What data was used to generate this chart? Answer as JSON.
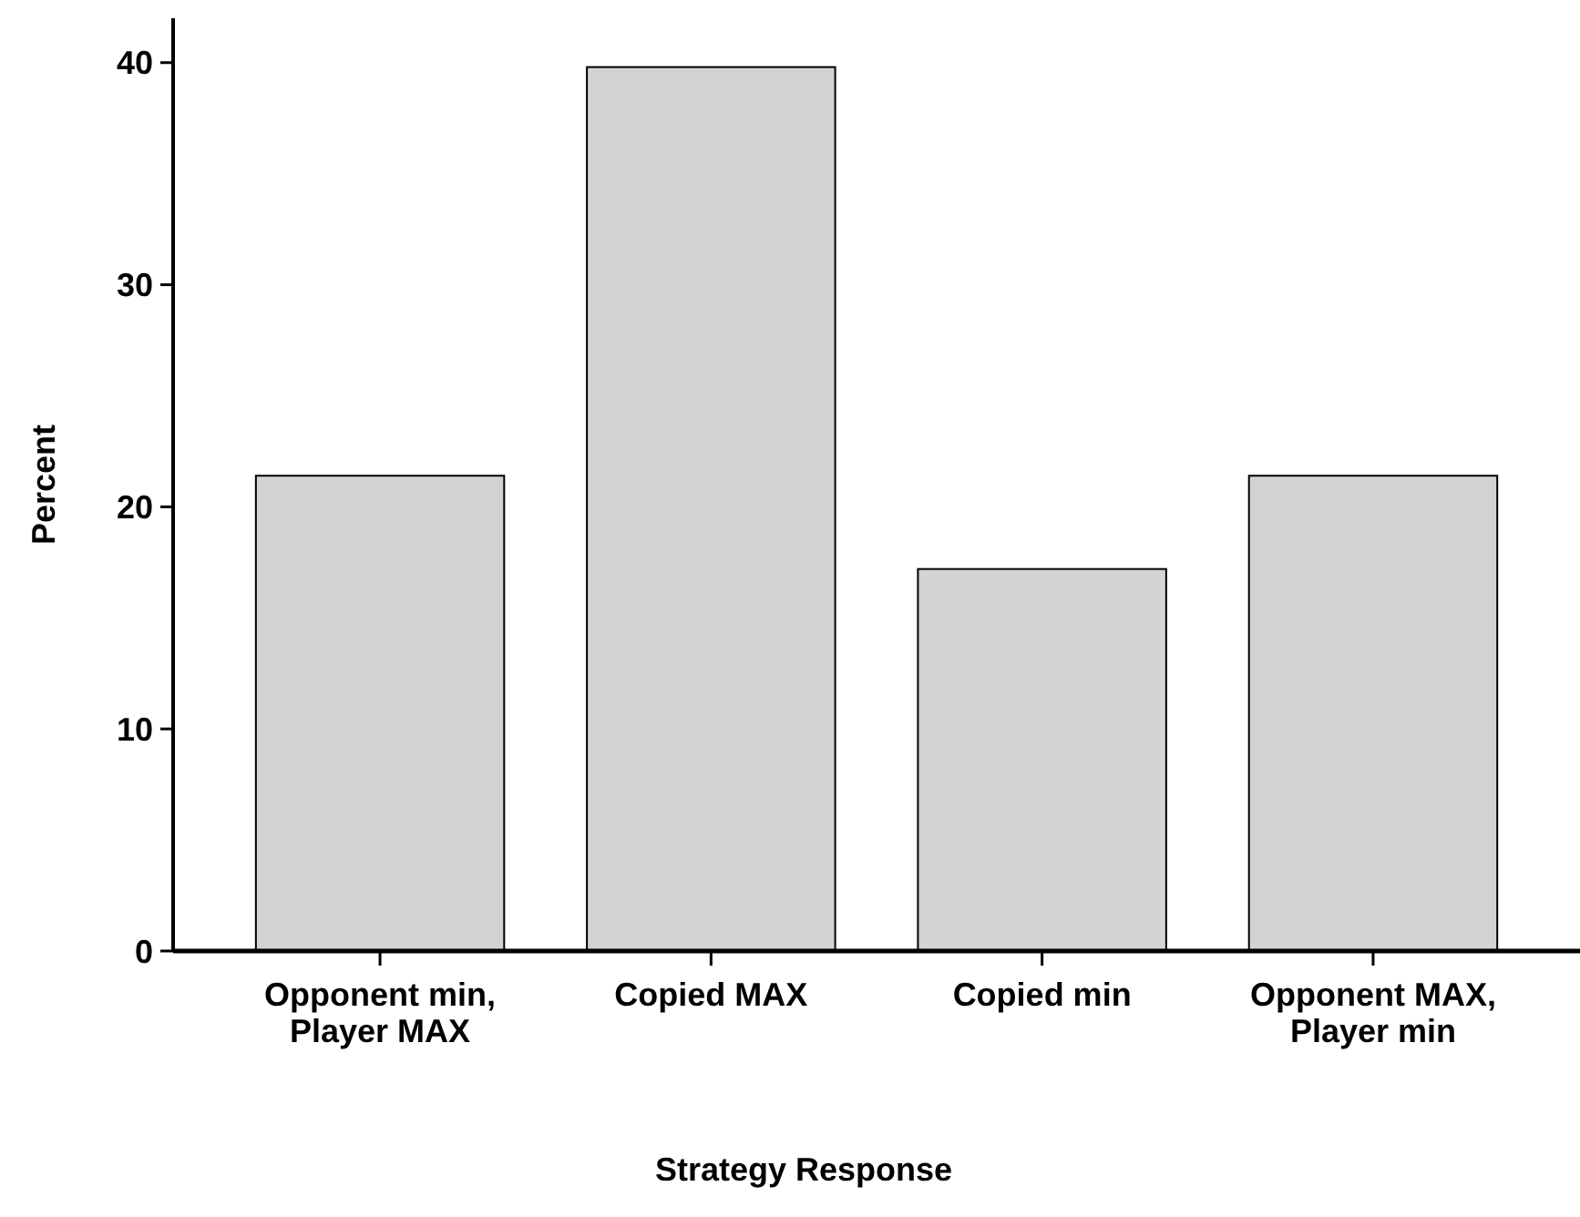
{
  "chart_data": {
    "type": "bar",
    "xlabel": "Strategy Response",
    "ylabel": "Percent",
    "categories": [
      "Opponent min, Player MAX",
      "Copied MAX",
      "Copied min",
      "Opponent MAX, Player min"
    ],
    "values": [
      21.4,
      39.8,
      17.2,
      21.4
    ],
    "color": "#d3d3d3",
    "ylim": [
      0,
      42
    ],
    "yticks": [
      0,
      10,
      20,
      30,
      40
    ],
    "grid": false
  }
}
